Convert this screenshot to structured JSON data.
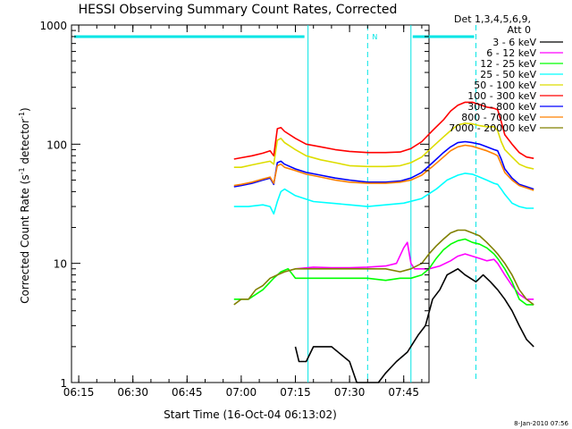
{
  "chart_data": {
    "type": "line",
    "title": "HESSI Observing Summary Count Rates, Corrected",
    "xlabel": "Start Time (16-Oct-04 06:13:02)",
    "ylabel_main": "Corrected Count Rate (s",
    "ylabel_sup1": "-1",
    "ylabel_mid": " detector",
    "ylabel_sup2": "-1",
    "ylabel_end": ")",
    "y_scale": "log",
    "ylim": [
      1,
      1000
    ],
    "xlim": [
      "06:13",
      "07:52"
    ],
    "x_ticks": [
      "06:15",
      "06:30",
      "06:45",
      "07:00",
      "07:15",
      "07:30",
      "07:45"
    ],
    "y_ticks": [
      "1",
      "10",
      "100",
      "1000"
    ],
    "legend_header_1": "Det 1,3,4,5,6,9,",
    "legend_header_2": "Att 0",
    "legend_position": "right",
    "footer_date": "8-Jan-2010 07:56",
    "flag_label": "N",
    "markers": {
      "solid_lines_min": [
        78.5,
        107
      ],
      "dashed_lines_min": [
        95,
        125
      ],
      "color": "#00e5e5"
    },
    "series": [
      {
        "name": "3 - 6 keV",
        "color": "#000000",
        "values": [
          [
            75,
            2
          ],
          [
            76,
            1.5
          ],
          [
            77,
            1.5
          ],
          [
            78,
            1.5
          ],
          [
            80,
            2
          ],
          [
            85,
            2
          ],
          [
            90,
            1.5
          ],
          [
            92,
            1
          ],
          [
            95,
            1
          ],
          [
            98,
            1
          ],
          [
            100,
            1.2
          ],
          [
            103,
            1.5
          ],
          [
            106,
            1.8
          ],
          [
            109,
            2.5
          ],
          [
            111,
            3
          ],
          [
            113,
            5
          ],
          [
            115,
            6
          ],
          [
            117,
            8
          ],
          [
            120,
            9
          ],
          [
            122,
            8
          ],
          [
            125,
            7
          ],
          [
            127,
            8
          ],
          [
            129,
            7
          ],
          [
            131,
            6
          ],
          [
            133,
            5
          ],
          [
            135,
            4
          ],
          [
            137,
            3
          ],
          [
            139,
            2.3
          ],
          [
            141,
            2
          ]
        ]
      },
      {
        "name": "6 - 12 keV",
        "color": "#ff00ff",
        "values": [
          [
            75,
            9
          ],
          [
            80,
            9.3
          ],
          [
            85,
            9.2
          ],
          [
            90,
            9.2
          ],
          [
            95,
            9.3
          ],
          [
            100,
            9.5
          ],
          [
            103,
            10
          ],
          [
            105,
            13.5
          ],
          [
            106,
            15
          ],
          [
            107,
            10
          ],
          [
            108,
            9
          ],
          [
            110,
            9
          ],
          [
            112,
            9
          ],
          [
            115,
            9.5
          ],
          [
            118,
            10.5
          ],
          [
            120,
            11.5
          ],
          [
            122,
            12
          ],
          [
            124,
            11.5
          ],
          [
            126,
            11
          ],
          [
            128,
            10.5
          ],
          [
            130,
            10.8
          ],
          [
            131,
            10
          ],
          [
            133,
            8
          ],
          [
            135,
            6.5
          ],
          [
            137,
            5.5
          ],
          [
            139,
            5
          ],
          [
            141,
            5
          ]
        ]
      },
      {
        "name": "12 - 25 keV",
        "color": "#00ff00",
        "values": [
          [
            58,
            5
          ],
          [
            62,
            5
          ],
          [
            66,
            6
          ],
          [
            69,
            7.5
          ],
          [
            71,
            8.5
          ],
          [
            73,
            9
          ],
          [
            75,
            7.5
          ],
          [
            78,
            7.5
          ],
          [
            82,
            7.5
          ],
          [
            86,
            7.5
          ],
          [
            90,
            7.5
          ],
          [
            95,
            7.5
          ],
          [
            100,
            7.2
          ],
          [
            104,
            7.5
          ],
          [
            107,
            7.5
          ],
          [
            110,
            8
          ],
          [
            112,
            9
          ],
          [
            114,
            11
          ],
          [
            116,
            13
          ],
          [
            118,
            14.5
          ],
          [
            120,
            15.5
          ],
          [
            122,
            16
          ],
          [
            124,
            15
          ],
          [
            126,
            14.5
          ],
          [
            128,
            13.5
          ],
          [
            130,
            12
          ],
          [
            131,
            11
          ],
          [
            133,
            9
          ],
          [
            135,
            7
          ],
          [
            137,
            5
          ],
          [
            139,
            4.5
          ],
          [
            141,
            4.5
          ]
        ]
      },
      {
        "name": "25 - 50 keV",
        "color": "#00ffff",
        "values": [
          [
            58,
            30
          ],
          [
            62,
            30
          ],
          [
            66,
            31
          ],
          [
            68,
            30
          ],
          [
            69,
            26
          ],
          [
            70,
            33
          ],
          [
            71,
            40
          ],
          [
            72,
            42
          ],
          [
            75,
            37
          ],
          [
            80,
            33
          ],
          [
            85,
            32
          ],
          [
            90,
            31
          ],
          [
            95,
            30
          ],
          [
            100,
            31
          ],
          [
            105,
            32
          ],
          [
            110,
            35
          ],
          [
            114,
            42
          ],
          [
            117,
            50
          ],
          [
            120,
            55
          ],
          [
            122,
            57
          ],
          [
            124,
            56
          ],
          [
            126,
            53
          ],
          [
            128,
            50
          ],
          [
            130,
            47
          ],
          [
            131,
            46
          ],
          [
            132,
            42
          ],
          [
            133,
            38
          ],
          [
            135,
            32
          ],
          [
            137,
            30
          ],
          [
            139,
            29
          ],
          [
            141,
            29
          ]
        ]
      },
      {
        "name": "50 - 100 keV",
        "color": "#dddd00",
        "values": [
          [
            58,
            64
          ],
          [
            60,
            64
          ],
          [
            63,
            67
          ],
          [
            66,
            70
          ],
          [
            68,
            72
          ],
          [
            69,
            68
          ],
          [
            70,
            108
          ],
          [
            71,
            112
          ],
          [
            72,
            103
          ],
          [
            75,
            90
          ],
          [
            78,
            80
          ],
          [
            82,
            74
          ],
          [
            86,
            70
          ],
          [
            90,
            66
          ],
          [
            95,
            65
          ],
          [
            100,
            65
          ],
          [
            104,
            66
          ],
          [
            107,
            70
          ],
          [
            110,
            78
          ],
          [
            113,
            95
          ],
          [
            116,
            115
          ],
          [
            118,
            130
          ],
          [
            120,
            145
          ],
          [
            122,
            150
          ],
          [
            124,
            148
          ],
          [
            126,
            143
          ],
          [
            128,
            140
          ],
          [
            130,
            140
          ],
          [
            131,
            130
          ],
          [
            132,
            105
          ],
          [
            133,
            90
          ],
          [
            135,
            78
          ],
          [
            137,
            68
          ],
          [
            139,
            64
          ],
          [
            141,
            62
          ]
        ]
      },
      {
        "name": "100 - 300 keV",
        "color": "#ff0000",
        "values": [
          [
            58,
            75
          ],
          [
            60,
            77
          ],
          [
            63,
            80
          ],
          [
            66,
            84
          ],
          [
            68,
            88
          ],
          [
            69,
            80
          ],
          [
            70,
            135
          ],
          [
            71,
            138
          ],
          [
            72,
            128
          ],
          [
            75,
            112
          ],
          [
            78,
            100
          ],
          [
            82,
            95
          ],
          [
            86,
            90
          ],
          [
            90,
            87
          ],
          [
            95,
            85
          ],
          [
            100,
            85
          ],
          [
            104,
            86
          ],
          [
            107,
            92
          ],
          [
            110,
            105
          ],
          [
            113,
            130
          ],
          [
            116,
            160
          ],
          [
            118,
            190
          ],
          [
            120,
            212
          ],
          [
            122,
            225
          ],
          [
            124,
            225
          ],
          [
            126,
            215
          ],
          [
            128,
            205
          ],
          [
            130,
            200
          ],
          [
            131,
            195
          ],
          [
            132,
            155
          ],
          [
            133,
            120
          ],
          [
            135,
            100
          ],
          [
            137,
            85
          ],
          [
            139,
            78
          ],
          [
            141,
            76
          ]
        ]
      },
      {
        "name": "300 - 800 keV",
        "color": "#0000ff",
        "values": [
          [
            58,
            44
          ],
          [
            60,
            45
          ],
          [
            63,
            47
          ],
          [
            66,
            50
          ],
          [
            68,
            52
          ],
          [
            69,
            46
          ],
          [
            70,
            70
          ],
          [
            71,
            72
          ],
          [
            72,
            68
          ],
          [
            75,
            62
          ],
          [
            78,
            58
          ],
          [
            82,
            55
          ],
          [
            86,
            52
          ],
          [
            90,
            50
          ],
          [
            95,
            48
          ],
          [
            100,
            48
          ],
          [
            104,
            49
          ],
          [
            107,
            52
          ],
          [
            110,
            58
          ],
          [
            113,
            70
          ],
          [
            116,
            85
          ],
          [
            118,
            95
          ],
          [
            120,
            103
          ],
          [
            122,
            105
          ],
          [
            124,
            103
          ],
          [
            126,
            100
          ],
          [
            128,
            95
          ],
          [
            130,
            90
          ],
          [
            131,
            88
          ],
          [
            132,
            75
          ],
          [
            133,
            62
          ],
          [
            135,
            52
          ],
          [
            137,
            46
          ],
          [
            139,
            44
          ],
          [
            141,
            42
          ]
        ]
      },
      {
        "name": "800 - 7000 keV",
        "color": "#ff8000",
        "values": [
          [
            58,
            45
          ],
          [
            60,
            46
          ],
          [
            63,
            48
          ],
          [
            66,
            51
          ],
          [
            68,
            53
          ],
          [
            69,
            47
          ],
          [
            70,
            66
          ],
          [
            71,
            68
          ],
          [
            72,
            64
          ],
          [
            75,
            60
          ],
          [
            78,
            56
          ],
          [
            82,
            53
          ],
          [
            86,
            50
          ],
          [
            90,
            48
          ],
          [
            95,
            47
          ],
          [
            100,
            47
          ],
          [
            104,
            48
          ],
          [
            107,
            50
          ],
          [
            110,
            55
          ],
          [
            113,
            65
          ],
          [
            116,
            78
          ],
          [
            118,
            88
          ],
          [
            120,
            95
          ],
          [
            122,
            98
          ],
          [
            124,
            96
          ],
          [
            126,
            92
          ],
          [
            128,
            88
          ],
          [
            130,
            83
          ],
          [
            131,
            80
          ],
          [
            132,
            68
          ],
          [
            133,
            58
          ],
          [
            135,
            50
          ],
          [
            137,
            45
          ],
          [
            139,
            43
          ],
          [
            141,
            41
          ]
        ]
      },
      {
        "name": "7000 - 20000 keV",
        "color": "#808000",
        "values": [
          [
            58,
            4.5
          ],
          [
            60,
            5
          ],
          [
            62,
            5
          ],
          [
            64,
            6
          ],
          [
            66,
            6.5
          ],
          [
            68,
            7.5
          ],
          [
            70,
            8
          ],
          [
            72,
            8.5
          ],
          [
            75,
            9
          ],
          [
            78,
            9
          ],
          [
            82,
            9
          ],
          [
            86,
            9
          ],
          [
            90,
            9
          ],
          [
            95,
            9
          ],
          [
            100,
            9
          ],
          [
            104,
            8.5
          ],
          [
            107,
            9
          ],
          [
            110,
            10
          ],
          [
            112,
            12
          ],
          [
            114,
            14
          ],
          [
            116,
            16
          ],
          [
            118,
            18
          ],
          [
            120,
            19
          ],
          [
            122,
            19
          ],
          [
            124,
            18
          ],
          [
            126,
            17
          ],
          [
            128,
            15
          ],
          [
            130,
            13
          ],
          [
            131,
            12
          ],
          [
            133,
            10
          ],
          [
            135,
            8
          ],
          [
            137,
            6
          ],
          [
            139,
            5
          ],
          [
            141,
            4.5
          ]
        ]
      }
    ]
  }
}
